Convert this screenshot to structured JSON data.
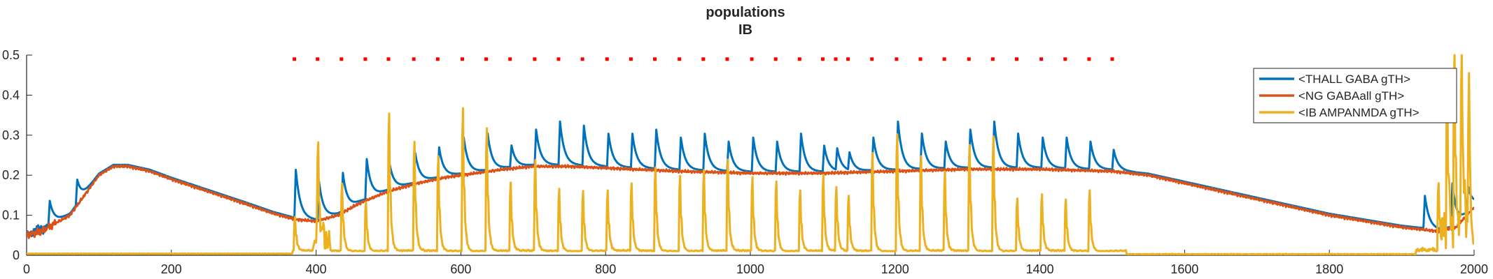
{
  "chart_data": {
    "type": "line",
    "title": [
      "populations",
      "IB"
    ],
    "xlabel": "",
    "ylabel": "",
    "xlim": [
      0,
      2000
    ],
    "ylim": [
      0,
      0.5
    ],
    "xticks": [
      0,
      200,
      400,
      600,
      800,
      1000,
      1200,
      1400,
      1600,
      1800,
      2000
    ],
    "yticks": [
      0,
      0.1,
      0.2,
      0.3,
      0.4,
      0.5
    ],
    "xtick_labels": [
      "0",
      "200",
      "400",
      "600",
      "800",
      "1000",
      "1200",
      "1400",
      "1600",
      "1800",
      "2000"
    ],
    "ytick_labels": [
      "0",
      "0.1",
      "0.2",
      "0.3",
      "0.4",
      "0.5"
    ],
    "grid": false,
    "legend_position": "top-right",
    "colors": {
      "thall": "#0072BD",
      "ng": "#D95319",
      "ib": "#EDB120",
      "markers": "#FF0000",
      "axis": "#262626"
    },
    "baseline_profile": [
      [
        0,
        0.05
      ],
      [
        20,
        0.06
      ],
      [
        40,
        0.08
      ],
      [
        60,
        0.1
      ],
      [
        80,
        0.15
      ],
      [
        100,
        0.2
      ],
      [
        120,
        0.222
      ],
      [
        140,
        0.222
      ],
      [
        170,
        0.21
      ],
      [
        200,
        0.19
      ],
      [
        250,
        0.16
      ],
      [
        300,
        0.13
      ],
      [
        340,
        0.105
      ],
      [
        370,
        0.09
      ],
      [
        400,
        0.085
      ],
      [
        430,
        0.1
      ],
      [
        460,
        0.13
      ],
      [
        500,
        0.16
      ],
      [
        540,
        0.18
      ],
      [
        580,
        0.195
      ],
      [
        620,
        0.205
      ],
      [
        660,
        0.215
      ],
      [
        700,
        0.222
      ],
      [
        750,
        0.222
      ],
      [
        800,
        0.218
      ],
      [
        900,
        0.21
      ],
      [
        1000,
        0.205
      ],
      [
        1100,
        0.205
      ],
      [
        1200,
        0.21
      ],
      [
        1300,
        0.215
      ],
      [
        1400,
        0.215
      ],
      [
        1500,
        0.21
      ],
      [
        1550,
        0.2
      ],
      [
        1600,
        0.18
      ],
      [
        1700,
        0.14
      ],
      [
        1800,
        0.1
      ],
      [
        1900,
        0.07
      ],
      [
        1950,
        0.06
      ],
      [
        1975,
        0.07
      ],
      [
        2000,
        0.12
      ]
    ],
    "stimulus_markers_x": [
      370,
      402,
      435,
      468,
      500,
      535,
      568,
      602,
      635,
      668,
      702,
      735,
      768,
      802,
      835,
      868,
      902,
      935,
      968,
      1002,
      1035,
      1068,
      1100,
      1118,
      1135,
      1168,
      1202,
      1235,
      1268,
      1302,
      1335,
      1368,
      1402,
      1435,
      1468,
      1500
    ],
    "stimulus_marker_y": 0.49,
    "series": [
      {
        "name": "<THALL GABA gTH>",
        "color": "#0072BD",
        "peaks": [
          [
            30,
            0.13
          ],
          [
            68,
            0.18
          ],
          [
            370,
            0.21
          ],
          [
            402,
            0.18
          ],
          [
            435,
            0.2
          ],
          [
            468,
            0.235
          ],
          [
            500,
            0.22
          ],
          [
            535,
            0.25
          ],
          [
            568,
            0.265
          ],
          [
            602,
            0.29
          ],
          [
            635,
            0.3
          ],
          [
            668,
            0.27
          ],
          [
            702,
            0.31
          ],
          [
            735,
            0.33
          ],
          [
            768,
            0.32
          ],
          [
            802,
            0.3
          ],
          [
            835,
            0.3
          ],
          [
            868,
            0.31
          ],
          [
            902,
            0.29
          ],
          [
            935,
            0.3
          ],
          [
            968,
            0.28
          ],
          [
            1002,
            0.29
          ],
          [
            1035,
            0.28
          ],
          [
            1068,
            0.3
          ],
          [
            1100,
            0.27
          ],
          [
            1118,
            0.26
          ],
          [
            1135,
            0.25
          ],
          [
            1168,
            0.29
          ],
          [
            1202,
            0.33
          ],
          [
            1235,
            0.3
          ],
          [
            1268,
            0.28
          ],
          [
            1302,
            0.31
          ],
          [
            1335,
            0.33
          ],
          [
            1368,
            0.3
          ],
          [
            1402,
            0.29
          ],
          [
            1435,
            0.29
          ],
          [
            1468,
            0.28
          ],
          [
            1500,
            0.26
          ],
          [
            1930,
            0.145
          ],
          [
            1968,
            0.175
          ],
          [
            1990,
            0.16
          ]
        ]
      },
      {
        "name": "<NG GABAall gTH>",
        "color": "#D95319",
        "peaks": []
      },
      {
        "name": "<IB AMPANMDA gTH>",
        "color": "#EDB120",
        "peaks": [
          [
            370,
            0.09
          ],
          [
            402,
            0.235
          ],
          [
            435,
            0.18
          ],
          [
            468,
            0.13
          ],
          [
            500,
            0.365
          ],
          [
            535,
            0.29
          ],
          [
            568,
            0.25
          ],
          [
            602,
            0.38
          ],
          [
            635,
            0.325
          ],
          [
            668,
            0.18
          ],
          [
            702,
            0.24
          ],
          [
            735,
            0.165
          ],
          [
            768,
            0.16
          ],
          [
            802,
            0.16
          ],
          [
            835,
            0.18
          ],
          [
            868,
            0.22
          ],
          [
            902,
            0.2
          ],
          [
            935,
            0.215
          ],
          [
            968,
            0.24
          ],
          [
            1002,
            0.195
          ],
          [
            1035,
            0.185
          ],
          [
            1068,
            0.16
          ],
          [
            1100,
            0.2
          ],
          [
            1118,
            0.17
          ],
          [
            1135,
            0.145
          ],
          [
            1168,
            0.26
          ],
          [
            1202,
            0.31
          ],
          [
            1235,
            0.25
          ],
          [
            1268,
            0.21
          ],
          [
            1302,
            0.28
          ],
          [
            1335,
            0.305
          ],
          [
            1368,
            0.14
          ],
          [
            1402,
            0.15
          ],
          [
            1435,
            0.135
          ],
          [
            1468,
            0.16
          ],
          [
            1950,
            0.18
          ],
          [
            1962,
            0.35
          ],
          [
            1972,
            0.5
          ],
          [
            1982,
            0.48
          ],
          [
            1992,
            0.4
          ]
        ]
      }
    ]
  }
}
